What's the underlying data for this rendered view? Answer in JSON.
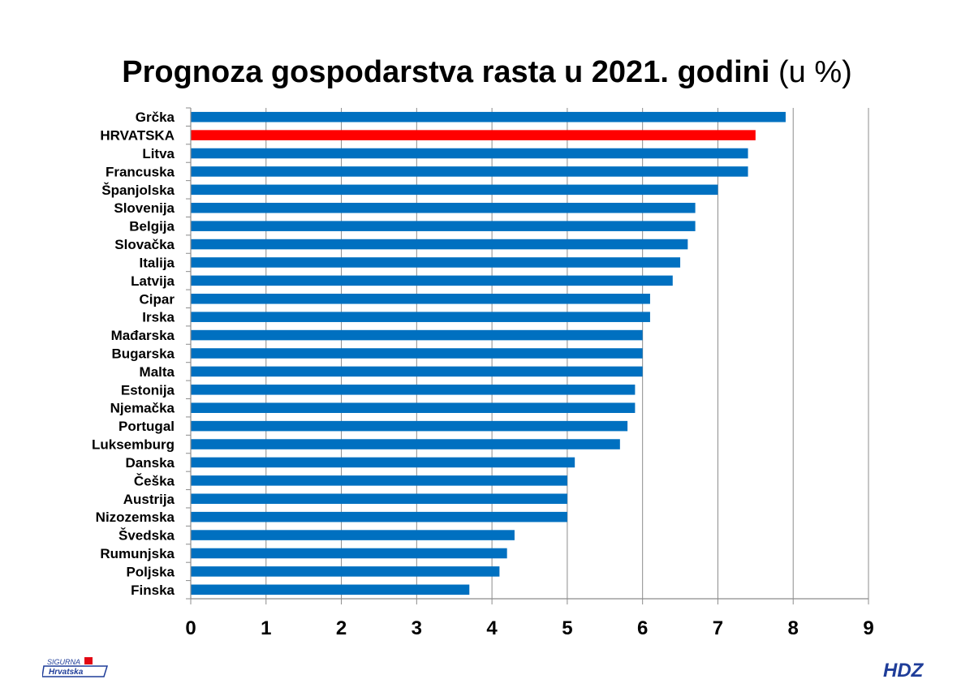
{
  "chart_data": {
    "type": "bar",
    "orientation": "horizontal",
    "title": "Prognoza gospodarstva rasta u 2021. godini",
    "title_unit": "(u %)",
    "categories": [
      "Grčka",
      "HRVATSKA",
      "Litva",
      "Francuska",
      "Španjolska",
      "Slovenija",
      "Belgija",
      "Slovačka",
      "Italija",
      "Latvija",
      "Cipar",
      "Irska",
      "Mađarska",
      "Bugarska",
      "Malta",
      "Estonija",
      "Njemačka",
      "Portugal",
      "Luksemburg",
      "Danska",
      "Češka",
      "Austrija",
      "Nizozemska",
      "Švedska",
      "Rumunjska",
      "Poljska",
      "Finska"
    ],
    "values": [
      7.9,
      7.5,
      7.4,
      7.4,
      7.0,
      6.7,
      6.7,
      6.6,
      6.5,
      6.4,
      6.1,
      6.1,
      6.0,
      6.0,
      6.0,
      5.9,
      5.9,
      5.8,
      5.7,
      5.1,
      5.0,
      5.0,
      5.0,
      4.3,
      4.2,
      4.1,
      3.7
    ],
    "highlight_category": "HRVATSKA",
    "colors": {
      "bar": "#0070c0",
      "highlight": "#ff0000",
      "grid": "#8c8c8c"
    },
    "xlim": [
      0,
      9
    ],
    "xticks": [
      "0",
      "1",
      "2",
      "3",
      "4",
      "5",
      "6",
      "7",
      "8",
      "9"
    ],
    "grid": true,
    "legend": "none"
  },
  "logos": {
    "left": {
      "line1": "SIGURNA",
      "line2": "Hrvatska"
    },
    "right": {
      "text": "HDZ"
    }
  }
}
